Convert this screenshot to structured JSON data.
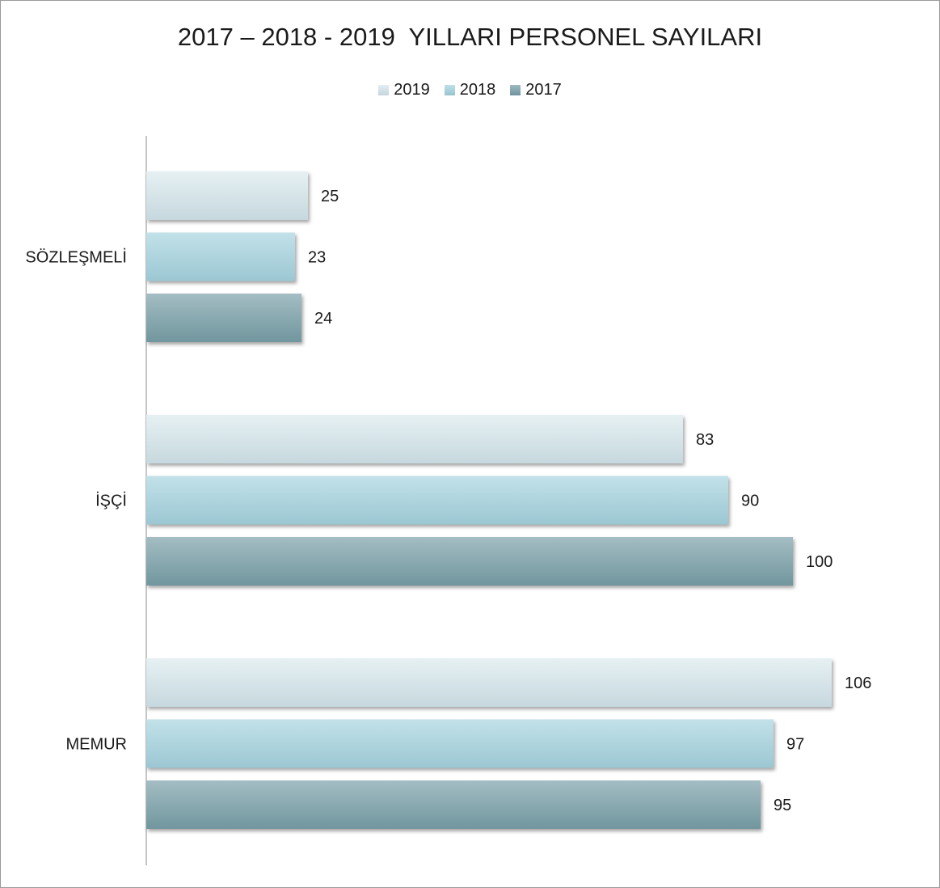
{
  "chart_data": {
    "type": "bar",
    "orientation": "horizontal",
    "title": "2017 – 2018 - 2019  YILLARI PERSONEL SAYILARI",
    "categories": [
      "SÖZLEŞMELİ",
      "İŞÇİ",
      "MEMUR"
    ],
    "series": [
      {
        "name": "2019",
        "values": [
          25,
          83,
          106
        ],
        "color": "#d3e4ea"
      },
      {
        "name": "2018",
        "values": [
          23,
          90,
          97
        ],
        "color": "#a9d2dc"
      },
      {
        "name": "2017",
        "values": [
          24,
          100,
          95
        ],
        "color": "#86a8b0"
      }
    ],
    "xlim": [
      0,
      106
    ],
    "grid": false,
    "legend_position": "top"
  }
}
